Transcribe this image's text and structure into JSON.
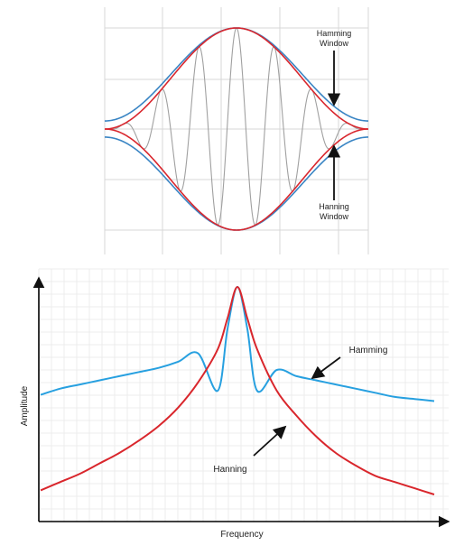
{
  "chart_data": [
    {
      "type": "line",
      "title": "",
      "xlabel": "",
      "ylabel": "",
      "grid": true,
      "x": [
        -1.0,
        -0.9,
        -0.8,
        -0.7,
        -0.6,
        -0.5,
        -0.4,
        -0.3,
        -0.2,
        -0.1,
        0.0,
        0.1,
        0.2,
        0.3,
        0.4,
        0.5,
        0.6,
        0.7,
        0.8,
        0.9,
        1.0
      ],
      "series": [
        {
          "name": "Hamming Window",
          "color": "#3a85c4",
          "envelope": "hamming"
        },
        {
          "name": "Hanning Window",
          "color": "#d9272e",
          "envelope": "hanning"
        },
        {
          "name": "",
          "color": "#a0a0a0",
          "modulated": true,
          "cycles": 3.5
        }
      ],
      "annotations": [
        {
          "text_lines": [
            "Hamming",
            "Window"
          ],
          "arrow": "down"
        },
        {
          "text_lines": [
            "Hanning",
            "Window"
          ],
          "arrow": "up"
        }
      ]
    },
    {
      "type": "line",
      "title": "",
      "xlabel": "Frequency",
      "ylabel": "Amplitude",
      "grid": true,
      "x": [
        -1.0,
        -0.9,
        -0.8,
        -0.7,
        -0.6,
        -0.5,
        -0.4,
        -0.3,
        -0.2,
        -0.1,
        -0.05,
        0.0,
        0.05,
        0.1,
        0.2,
        0.3,
        0.4,
        0.5,
        0.6,
        0.7,
        0.8,
        0.9,
        1.0
      ],
      "series": [
        {
          "name": "Hamming",
          "color": "#27a0e0",
          "values": [
            0.48,
            0.51,
            0.53,
            0.55,
            0.57,
            0.59,
            0.61,
            0.64,
            0.68,
            0.5,
            0.8,
            1.0,
            0.8,
            0.5,
            0.6,
            0.57,
            0.55,
            0.53,
            0.51,
            0.49,
            0.47,
            0.46,
            0.45
          ]
        },
        {
          "name": "Hanning",
          "color": "#d9262c",
          "values": [
            0.02,
            0.06,
            0.1,
            0.15,
            0.2,
            0.26,
            0.33,
            0.42,
            0.54,
            0.7,
            0.85,
            1.0,
            0.85,
            0.7,
            0.5,
            0.38,
            0.28,
            0.2,
            0.14,
            0.09,
            0.06,
            0.03,
            0.0
          ]
        }
      ],
      "annotations": [
        {
          "text": "Hamming",
          "arrow": "down-left"
        },
        {
          "text": "Hanning",
          "arrow": "up-right"
        }
      ]
    }
  ]
}
